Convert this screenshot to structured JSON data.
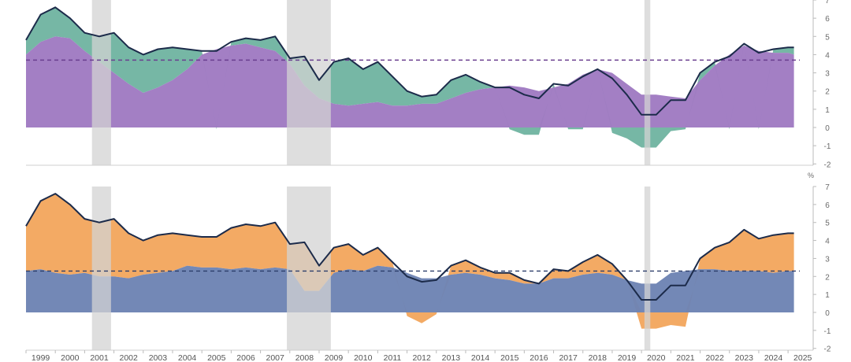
{
  "chart_data": [
    {
      "type": "area",
      "title": "",
      "xlabel": "",
      "ylabel": "",
      "unit": "",
      "xlim": [
        1999,
        2025.4
      ],
      "ylim": [
        -2,
        7
      ],
      "yticks": [
        -2,
        -1,
        0,
        1,
        2,
        3,
        4,
        5,
        6,
        7
      ],
      "x_tick_labels": [
        "1999",
        "2000",
        "2001",
        "2002",
        "2003",
        "2004",
        "2005",
        "2006",
        "2007",
        "2008",
        "2009",
        "2010",
        "2011",
        "2012",
        "2013",
        "2014",
        "2015",
        "2016",
        "2017",
        "2018",
        "2019",
        "2020",
        "2021",
        "2022",
        "2023",
        "2024",
        "2025"
      ],
      "recession_shading": [
        [
          2001.25,
          2001.9
        ],
        [
          2007.9,
          2009.4
        ],
        [
          2020.1,
          2020.3
        ]
      ],
      "reference_line": 3.7,
      "grid": false,
      "legend": "none",
      "colors": {
        "line": "#1c2b4a",
        "series_a": "#a07bc2",
        "series_b": "#6fb3a0",
        "recession": "#d3d3d3",
        "reference": "#6a3f8f"
      },
      "x": [
        1999,
        1999.5,
        2000,
        2000.5,
        2001,
        2001.5,
        2002,
        2002.5,
        2003,
        2003.5,
        2004,
        2004.5,
        2005,
        2005.5,
        2006,
        2006.5,
        2007,
        2007.5,
        2008,
        2008.5,
        2009,
        2009.5,
        2010,
        2010.5,
        2011,
        2011.5,
        2012,
        2012.5,
        2013,
        2013.5,
        2014,
        2014.5,
        2015,
        2015.5,
        2016,
        2016.5,
        2017,
        2017.5,
        2018,
        2018.5,
        2019,
        2019.5,
        2020,
        2020.5,
        2021,
        2021.5,
        2022,
        2022.5,
        2023,
        2023.5,
        2024,
        2024.5,
        2025,
        2025.2
      ],
      "series": [
        {
          "role": "line",
          "values": [
            4.8,
            6.2,
            6.6,
            6.0,
            5.2,
            5.0,
            5.2,
            4.4,
            4.0,
            4.3,
            4.4,
            4.3,
            4.2,
            4.2,
            4.7,
            4.9,
            4.8,
            5.0,
            3.8,
            3.9,
            2.6,
            3.6,
            3.8,
            3.2,
            3.6,
            2.8,
            2.0,
            1.7,
            1.8,
            2.6,
            2.9,
            2.5,
            2.2,
            2.2,
            1.8,
            1.6,
            2.4,
            2.3,
            2.8,
            3.2,
            2.7,
            1.8,
            0.7,
            0.7,
            1.5,
            1.5,
            3.0,
            3.6,
            3.9,
            4.6,
            4.1,
            4.3,
            4.4,
            4.4
          ]
        },
        {
          "role": "area-a",
          "values": [
            4.0,
            4.7,
            5.0,
            4.9,
            4.2,
            3.6,
            3.0,
            2.4,
            1.9,
            2.2,
            2.6,
            3.2,
            4.0,
            4.3,
            4.5,
            4.6,
            4.4,
            4.2,
            3.5,
            2.3,
            1.6,
            1.3,
            1.2,
            1.3,
            1.4,
            1.2,
            1.2,
            1.3,
            1.3,
            1.6,
            1.9,
            2.1,
            2.2,
            2.3,
            2.2,
            2.0,
            2.2,
            2.4,
            2.9,
            3.2,
            3.0,
            2.4,
            1.8,
            1.8,
            1.7,
            1.6,
            2.6,
            3.4,
            4.0,
            4.5,
            4.2,
            4.1,
            4.1,
            4.0
          ]
        },
        {
          "role": "area-b",
          "values": [
            0.8,
            1.5,
            1.6,
            1.1,
            1.0,
            1.4,
            2.2,
            2.0,
            2.1,
            2.1,
            1.8,
            1.1,
            0.2,
            -0.1,
            0.2,
            0.3,
            0.4,
            0.8,
            0.3,
            1.6,
            1.0,
            2.3,
            2.6,
            1.9,
            2.2,
            1.6,
            0.8,
            0.4,
            0.5,
            1.0,
            1.0,
            0.4,
            0.0,
            -0.1,
            -0.4,
            -0.4,
            0.2,
            -0.1,
            -0.1,
            0.0,
            -0.3,
            -0.6,
            -1.1,
            -1.1,
            -0.2,
            -0.1,
            0.4,
            0.2,
            -0.1,
            0.1,
            -0.1,
            0.2,
            0.3,
            0.4
          ]
        }
      ]
    },
    {
      "type": "area",
      "title": "",
      "xlabel": "",
      "ylabel": "",
      "unit": "%",
      "xlim": [
        1999,
        2025.4
      ],
      "ylim": [
        -2,
        7
      ],
      "yticks": [
        -2,
        -1,
        0,
        1,
        2,
        3,
        4,
        5,
        6,
        7
      ],
      "x_tick_labels": [
        "1999",
        "2000",
        "2001",
        "2002",
        "2003",
        "2004",
        "2005",
        "2006",
        "2007",
        "2008",
        "2009",
        "2010",
        "2011",
        "2012",
        "2013",
        "2014",
        "2015",
        "2016",
        "2017",
        "2018",
        "2019",
        "2020",
        "2021",
        "2022",
        "2023",
        "2024",
        "2025"
      ],
      "recession_shading": [
        [
          2001.25,
          2001.9
        ],
        [
          2007.9,
          2009.4
        ],
        [
          2020.1,
          2020.3
        ]
      ],
      "reference_line": 2.3,
      "grid": false,
      "legend": "none",
      "colors": {
        "line": "#1c2b4a",
        "series_a": "#6e84b4",
        "series_b": "#f2a55c",
        "recession": "#d3d3d3",
        "reference": "#2c3e6b"
      },
      "x": [
        1999,
        1999.5,
        2000,
        2000.5,
        2001,
        2001.5,
        2002,
        2002.5,
        2003,
        2003.5,
        2004,
        2004.5,
        2005,
        2005.5,
        2006,
        2006.5,
        2007,
        2007.5,
        2008,
        2008.5,
        2009,
        2009.5,
        2010,
        2010.5,
        2011,
        2011.5,
        2012,
        2012.5,
        2013,
        2013.5,
        2014,
        2014.5,
        2015,
        2015.5,
        2016,
        2016.5,
        2017,
        2017.5,
        2018,
        2018.5,
        2019,
        2019.5,
        2020,
        2020.5,
        2021,
        2021.5,
        2022,
        2022.5,
        2023,
        2023.5,
        2024,
        2024.5,
        2025,
        2025.2
      ],
      "series": [
        {
          "role": "line",
          "values": [
            4.8,
            6.2,
            6.6,
            6.0,
            5.2,
            5.0,
            5.2,
            4.4,
            4.0,
            4.3,
            4.4,
            4.3,
            4.2,
            4.2,
            4.7,
            4.9,
            4.8,
            5.0,
            3.8,
            3.9,
            2.6,
            3.6,
            3.8,
            3.2,
            3.6,
            2.8,
            2.0,
            1.7,
            1.8,
            2.6,
            2.9,
            2.5,
            2.2,
            2.2,
            1.8,
            1.6,
            2.4,
            2.3,
            2.8,
            3.2,
            2.7,
            1.8,
            0.7,
            0.7,
            1.5,
            1.5,
            3.0,
            3.6,
            3.9,
            4.6,
            4.1,
            4.3,
            4.4,
            4.4
          ]
        },
        {
          "role": "area-a",
          "values": [
            2.3,
            2.4,
            2.2,
            2.1,
            2.2,
            2.0,
            2.0,
            1.9,
            2.1,
            2.2,
            2.3,
            2.6,
            2.5,
            2.5,
            2.4,
            2.5,
            2.4,
            2.5,
            2.4,
            1.2,
            1.2,
            2.2,
            2.4,
            2.3,
            2.6,
            2.5,
            2.2,
            1.9,
            1.9,
            2.1,
            2.2,
            2.1,
            1.9,
            1.8,
            1.6,
            1.6,
            1.9,
            1.9,
            2.1,
            2.2,
            2.1,
            1.8,
            1.6,
            1.6,
            2.2,
            2.3,
            2.4,
            2.4,
            2.3,
            2.3,
            2.3,
            2.2,
            2.3,
            2.3
          ]
        },
        {
          "role": "area-b",
          "values": [
            2.5,
            3.8,
            4.4,
            3.9,
            3.0,
            3.0,
            3.2,
            2.5,
            1.9,
            2.1,
            2.1,
            1.7,
            1.7,
            1.7,
            2.3,
            2.4,
            2.4,
            2.5,
            1.4,
            2.7,
            1.4,
            1.4,
            1.4,
            0.9,
            1.0,
            0.3,
            -0.2,
            -0.6,
            -0.1,
            0.5,
            0.7,
            0.4,
            0.3,
            0.4,
            0.2,
            0.0,
            0.5,
            0.4,
            0.7,
            1.0,
            0.6,
            0.0,
            -0.9,
            -0.9,
            -0.7,
            -0.8,
            0.6,
            1.2,
            1.6,
            2.3,
            1.8,
            2.1,
            2.1,
            2.1
          ]
        }
      ]
    }
  ]
}
